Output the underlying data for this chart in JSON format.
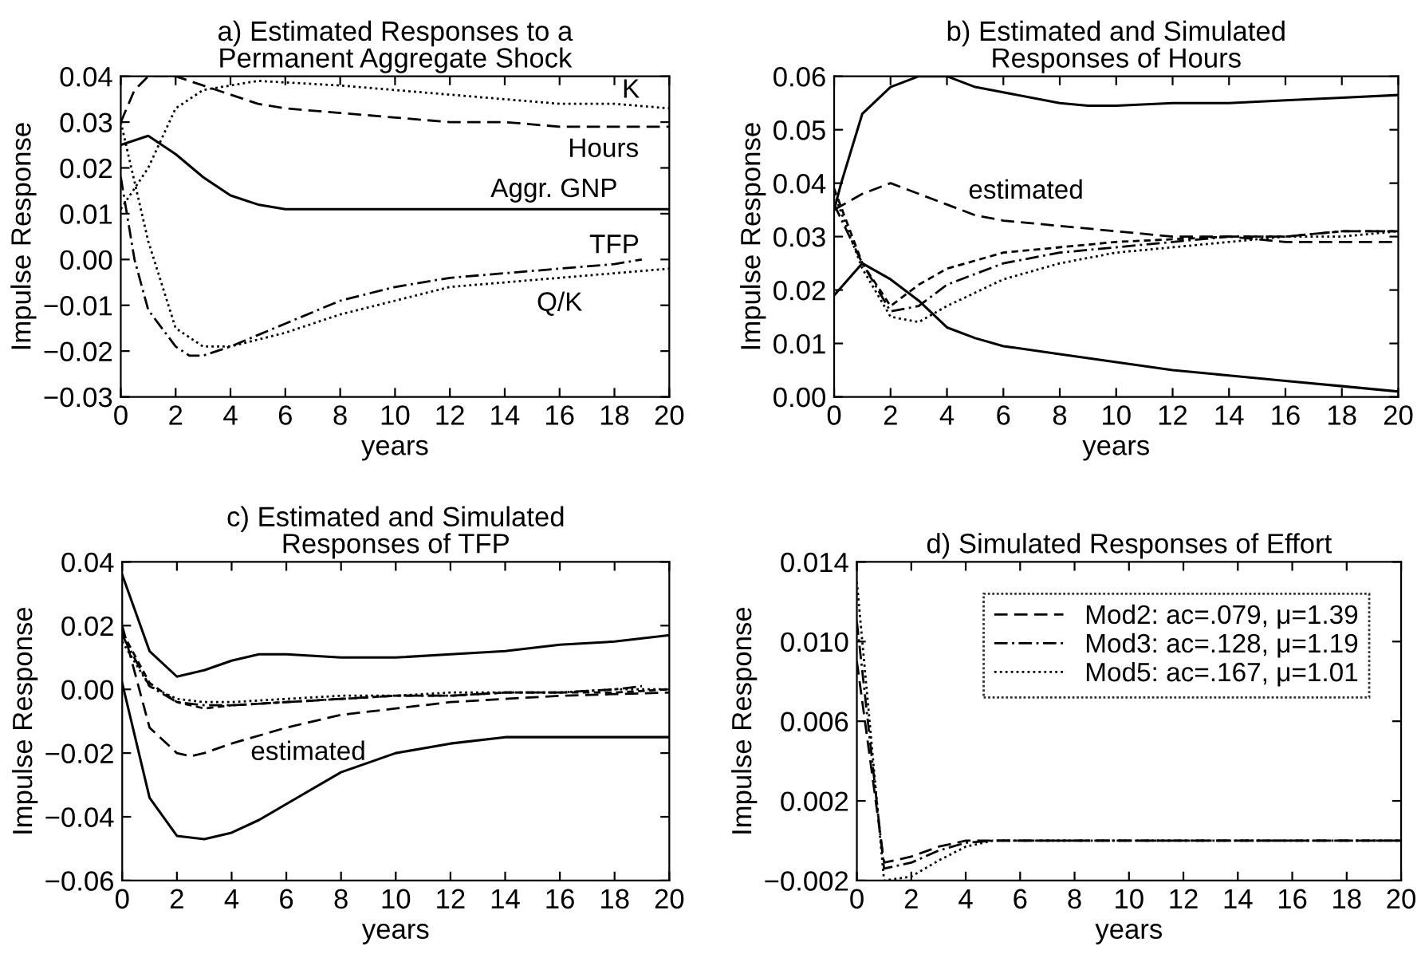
{
  "chart_data": [
    {
      "type": "line",
      "title": "a) Estimated Responses to a\nPermanent Aggregate Shock",
      "xlabel": "years",
      "ylabel": "Impulse Response",
      "xlim": [
        0,
        20
      ],
      "xticks": [
        0,
        2,
        4,
        6,
        8,
        10,
        12,
        14,
        16,
        18,
        20
      ],
      "ylim": [
        -0.03,
        0.04
      ],
      "yticks": [
        {
          "value": -0.03,
          "label": "−0.03"
        },
        {
          "value": -0.02,
          "label": "−0.02"
        },
        {
          "value": -0.01,
          "label": "−0.01"
        },
        {
          "value": 0,
          "label": "0.00"
        },
        {
          "value": 0.01,
          "label": "0.01"
        },
        {
          "value": 0.02,
          "label": "0.02"
        },
        {
          "value": 0.03,
          "label": "0.03"
        },
        {
          "value": 0.04,
          "label": "0.04"
        }
      ],
      "series": [
        {
          "color": "#000000",
          "line_style": "dashed",
          "x": [
            0,
            0.5,
            1,
            2,
            3,
            4,
            5,
            6,
            8,
            10,
            12,
            14,
            16,
            18,
            20
          ],
          "values": [
            0.03,
            0.037,
            0.04,
            0.04,
            0.038,
            0.036,
            0.034,
            0.033,
            0.032,
            0.031,
            0.03,
            0.03,
            0.029,
            0.029,
            0.029
          ]
        },
        {
          "color": "#000000",
          "line_style": "dotted",
          "x": [
            0,
            1,
            2,
            3,
            4,
            5,
            8,
            10,
            12,
            14,
            16,
            18,
            20
          ],
          "values": [
            0.011,
            0.02,
            0.033,
            0.037,
            0.038,
            0.039,
            0.038,
            0.037,
            0.036,
            0.035,
            0.034,
            0.034,
            0.033
          ]
        },
        {
          "color": "#000000",
          "line_style": "solid",
          "x": [
            0,
            1,
            2,
            3,
            4,
            5,
            6,
            8,
            10,
            12,
            14,
            16,
            18,
            20
          ],
          "values": [
            0.025,
            0.027,
            0.023,
            0.018,
            0.014,
            0.012,
            0.011,
            0.011,
            0.011,
            0.011,
            0.011,
            0.011,
            0.011,
            0.011
          ]
        },
        {
          "color": "#000000",
          "line_style": "dashdot",
          "x": [
            0,
            0.5,
            1,
            2,
            2.5,
            3,
            4,
            6,
            8,
            10,
            12,
            14,
            16,
            18,
            19
          ],
          "values": [
            0.018,
            0.0,
            -0.011,
            -0.019,
            -0.021,
            -0.021,
            -0.019,
            -0.014,
            -0.009,
            -0.006,
            -0.004,
            -0.003,
            -0.002,
            -0.001,
            0.0
          ]
        },
        {
          "color": "#000000",
          "line_style": "dotted",
          "x": [
            0,
            1,
            2,
            3,
            4,
            6,
            8,
            10,
            12,
            14,
            16,
            18,
            20
          ],
          "values": [
            0.03,
            0.004,
            -0.015,
            -0.019,
            -0.019,
            -0.016,
            -0.012,
            -0.009,
            -0.006,
            -0.005,
            -0.004,
            -0.003,
            -0.002
          ]
        }
      ],
      "annotations": [
        "K",
        "Hours",
        "Aggr. GNP",
        "TFP",
        "Q/K"
      ]
    },
    {
      "type": "line",
      "title": "b) Estimated and Simulated\nResponses of Hours",
      "xlabel": "years",
      "ylabel": "Impulse Response",
      "xlim": [
        0,
        20
      ],
      "xticks": [
        0,
        2,
        4,
        6,
        8,
        10,
        12,
        14,
        16,
        18,
        20
      ],
      "ylim": [
        0,
        0.06
      ],
      "yticks": [
        {
          "value": 0,
          "label": "0.00"
        },
        {
          "value": 0.01,
          "label": "0.01"
        },
        {
          "value": 0.02,
          "label": "0.02"
        },
        {
          "value": 0.03,
          "label": "0.03"
        },
        {
          "value": 0.04,
          "label": "0.04"
        },
        {
          "value": 0.05,
          "label": "0.05"
        },
        {
          "value": 0.06,
          "label": "0.06"
        }
      ],
      "series": [
        {
          "color": "#000000",
          "line_style": "solid",
          "x": [
            0,
            0.25,
            1,
            2,
            3,
            4,
            5,
            6,
            8,
            9,
            10,
            12,
            14,
            16,
            18,
            20
          ],
          "values": [
            0.035,
            0.04,
            0.053,
            0.058,
            0.06,
            0.06,
            0.058,
            0.057,
            0.055,
            0.0545,
            0.0545,
            0.055,
            0.055,
            0.0555,
            0.056,
            0.0565
          ]
        },
        {
          "color": "#000000",
          "line_style": "solid",
          "x": [
            0,
            1,
            2,
            3,
            4,
            5,
            6,
            8,
            10,
            12,
            14,
            16,
            18,
            20
          ],
          "values": [
            0.019,
            0.025,
            0.022,
            0.018,
            0.013,
            0.011,
            0.0095,
            0.008,
            0.0065,
            0.005,
            0.004,
            0.003,
            0.002,
            0.001
          ]
        },
        {
          "color": "#000000",
          "line_style": "dashed",
          "x": [
            0,
            1,
            2,
            3,
            4,
            5,
            6,
            8,
            10,
            12,
            14,
            16,
            18,
            20
          ],
          "values": [
            0.035,
            0.038,
            0.04,
            0.038,
            0.036,
            0.034,
            0.033,
            0.032,
            0.031,
            0.03,
            0.03,
            0.029,
            0.029,
            0.029
          ]
        },
        {
          "color": "#000000",
          "line_style": "dashed",
          "x": [
            0,
            1,
            2,
            3,
            4,
            6,
            8,
            10,
            12,
            14,
            16,
            18,
            20
          ],
          "values": [
            0.039,
            0.025,
            0.017,
            0.021,
            0.024,
            0.027,
            0.028,
            0.029,
            0.0295,
            0.03,
            0.03,
            0.031,
            0.031
          ]
        },
        {
          "color": "#000000",
          "line_style": "dashdot",
          "x": [
            0,
            1,
            2,
            3,
            4,
            6,
            8,
            10,
            12,
            14,
            16,
            18,
            20
          ],
          "values": [
            0.036,
            0.025,
            0.016,
            0.017,
            0.021,
            0.025,
            0.027,
            0.028,
            0.029,
            0.03,
            0.03,
            0.031,
            0.031
          ]
        },
        {
          "color": "#000000",
          "line_style": "dotted",
          "x": [
            0,
            1,
            2,
            3,
            4,
            6,
            8,
            10,
            12,
            14,
            16,
            18,
            20
          ],
          "values": [
            0.038,
            0.024,
            0.015,
            0.014,
            0.017,
            0.022,
            0.025,
            0.027,
            0.028,
            0.029,
            0.03,
            0.03,
            0.031
          ]
        }
      ],
      "annotations": [
        "estimated"
      ]
    },
    {
      "type": "line",
      "title": "c) Estimated and Simulated\nResponses of TFP",
      "xlabel": "years",
      "ylabel": "Impulse Response",
      "xlim": [
        0,
        20
      ],
      "xticks": [
        0,
        2,
        4,
        6,
        8,
        10,
        12,
        14,
        16,
        18,
        20
      ],
      "ylim": [
        -0.06,
        0.04
      ],
      "yticks": [
        {
          "value": -0.06,
          "label": "−0.06"
        },
        {
          "value": -0.04,
          "label": "−0.04"
        },
        {
          "value": -0.02,
          "label": "−0.02"
        },
        {
          "value": 0,
          "label": "0.00"
        },
        {
          "value": 0.02,
          "label": "0.02"
        },
        {
          "value": 0.04,
          "label": "0.04"
        }
      ],
      "series": [
        {
          "color": "#000000",
          "line_style": "solid",
          "x": [
            0,
            1,
            2,
            3,
            4,
            5,
            6,
            8,
            10,
            12,
            14,
            16,
            18,
            20
          ],
          "values": [
            0.036,
            0.012,
            0.004,
            0.006,
            0.009,
            0.011,
            0.011,
            0.01,
            0.01,
            0.011,
            0.012,
            0.014,
            0.015,
            0.017
          ]
        },
        {
          "color": "#000000",
          "line_style": "solid",
          "x": [
            0,
            1,
            2,
            3,
            4,
            5,
            6,
            8,
            10,
            12,
            14,
            16,
            18,
            20
          ],
          "values": [
            0.002,
            -0.034,
            -0.046,
            -0.047,
            -0.045,
            -0.041,
            -0.036,
            -0.026,
            -0.02,
            -0.017,
            -0.015,
            -0.015,
            -0.015,
            -0.015
          ]
        },
        {
          "color": "#000000",
          "line_style": "dashed",
          "x": [
            0,
            1,
            2,
            2.5,
            3,
            4,
            6,
            8,
            10,
            12,
            14,
            16,
            18,
            20
          ],
          "values": [
            0.02,
            -0.012,
            -0.02,
            -0.021,
            -0.02,
            -0.017,
            -0.012,
            -0.008,
            -0.006,
            -0.004,
            -0.003,
            -0.002,
            -0.0015,
            -0.001
          ]
        },
        {
          "color": "#000000",
          "line_style": "dashed",
          "x": [
            0,
            1,
            2,
            3,
            4,
            6,
            8,
            10,
            12,
            14,
            16,
            18,
            20
          ],
          "values": [
            0.018,
            0.002,
            -0.004,
            -0.006,
            -0.005,
            -0.004,
            -0.003,
            -0.002,
            -0.002,
            -0.001,
            -0.001,
            -0.001,
            0.0
          ]
        },
        {
          "color": "#000000",
          "line_style": "dashdot",
          "x": [
            0,
            1,
            2,
            3,
            4,
            6,
            8,
            10,
            12,
            14,
            16,
            18,
            19
          ],
          "values": [
            0.017,
            0.001,
            -0.004,
            -0.005,
            -0.005,
            -0.004,
            -0.003,
            -0.002,
            -0.002,
            -0.001,
            -0.001,
            0.0,
            0.001
          ]
        },
        {
          "color": "#000000",
          "line_style": "dotted",
          "x": [
            0,
            1,
            2,
            3,
            4,
            6,
            8,
            10,
            12,
            14,
            16,
            18,
            20
          ],
          "values": [
            0.015,
            0.001,
            -0.003,
            -0.004,
            -0.004,
            -0.003,
            -0.002,
            -0.002,
            -0.001,
            -0.001,
            -0.001,
            0.0,
            0.0
          ]
        }
      ],
      "annotations": [
        "estimated"
      ]
    },
    {
      "type": "line",
      "title": "d) Simulated Responses of Effort",
      "xlabel": "years",
      "ylabel": "Impulse Response",
      "xlim": [
        0,
        20
      ],
      "xticks": [
        0,
        2,
        4,
        6,
        8,
        10,
        12,
        14,
        16,
        18,
        20
      ],
      "ylim": [
        -0.002,
        0.014
      ],
      "yticks": [
        {
          "value": -0.002,
          "label": "−0.002"
        },
        {
          "value": 0.002,
          "label": "0.002"
        },
        {
          "value": 0.006,
          "label": "0.006"
        },
        {
          "value": 0.01,
          "label": "0.010"
        },
        {
          "value": 0.014,
          "label": "0.014"
        }
      ],
      "legend": "top right",
      "series": [
        {
          "name": "Mod2: ac=.079, μ=1.39",
          "color": "#000000",
          "line_style": "dashed",
          "x": [
            0,
            1,
            2,
            3,
            4,
            5,
            20
          ],
          "values": [
            0.009,
            -0.0011,
            -0.0008,
            -0.0003,
            0.0,
            0.0,
            0.0
          ]
        },
        {
          "name": "Mod3: ac=.128, μ=1.19",
          "color": "#000000",
          "line_style": "dashdot",
          "x": [
            0,
            1,
            2,
            3,
            4,
            5,
            20
          ],
          "values": [
            0.011,
            -0.0014,
            -0.0011,
            -0.0005,
            -0.0001,
            0.0,
            0.0
          ]
        },
        {
          "name": "Mod5: ac=.167, μ=1.01",
          "color": "#000000",
          "line_style": "dotted",
          "x": [
            0,
            1,
            2,
            3,
            4,
            5,
            20
          ],
          "values": [
            0.013,
            -0.002,
            -0.0018,
            -0.001,
            -0.0003,
            0.0,
            0.0
          ]
        }
      ]
    }
  ]
}
